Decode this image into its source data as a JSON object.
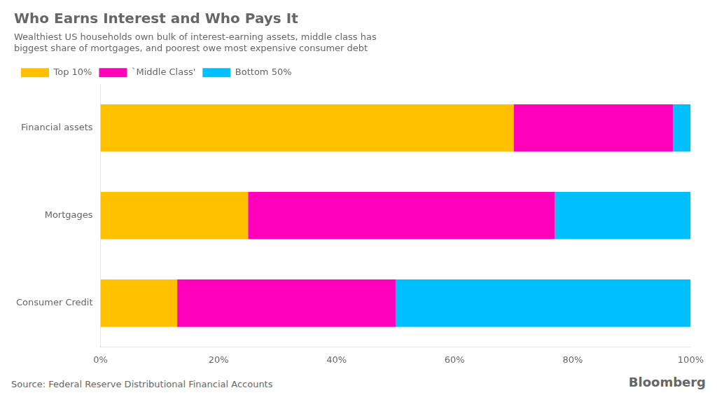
{
  "chart_data": {
    "type": "bar",
    "orientation": "horizontal",
    "stacked": true,
    "title": "Who Earns Interest and Who Pays It",
    "subtitle": "Wealthiest US households own bulk of interest-earning assets, middle class has\nbiggest share of mortgages, and poorest owe most expensive consumer debt",
    "categories": [
      "Financial assets",
      "Mortgages",
      "Consumer Credit"
    ],
    "series": [
      {
        "name": "Top 10%",
        "color": "#FFC000",
        "values": [
          70,
          25,
          13
        ]
      },
      {
        "name": "`Middle Class'",
        "color": "#FF00BB",
        "values": [
          27,
          52,
          37
        ]
      },
      {
        "name": "Bottom 50%",
        "color": "#00BFFF",
        "values": [
          3,
          23,
          50
        ]
      }
    ],
    "xlim": [
      0,
      100
    ],
    "xticks": [
      {
        "value": 0,
        "label": "0%"
      },
      {
        "value": 20,
        "label": "20%"
      },
      {
        "value": 40,
        "label": "40%"
      },
      {
        "value": 60,
        "label": "60%"
      },
      {
        "value": 80,
        "label": "80%"
      },
      {
        "value": 100,
        "label": "100%"
      }
    ],
    "grid": false,
    "legend": "top",
    "annotations": [
      "Source: Federal Reserve Distributional Financial Accounts",
      "Bloomberg"
    ]
  }
}
